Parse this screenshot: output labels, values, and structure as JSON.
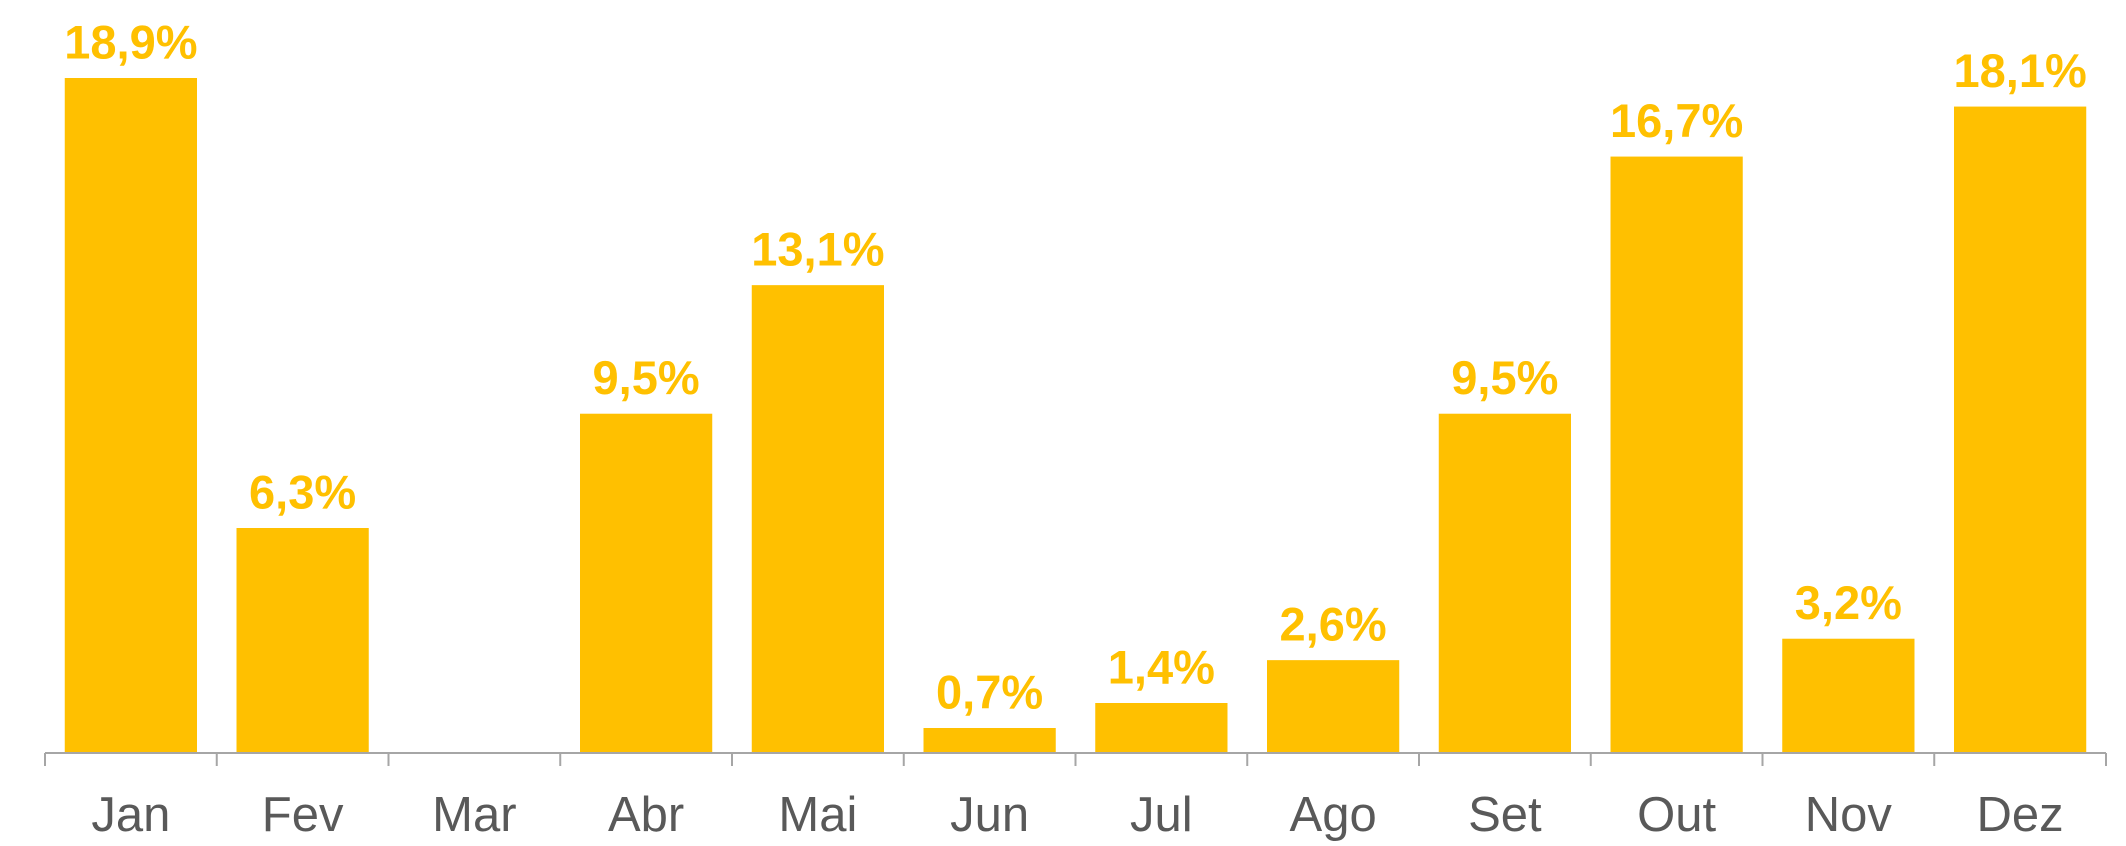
{
  "chart_data": {
    "type": "bar",
    "categories": [
      "Jan",
      "Fev",
      "Mar",
      "Abr",
      "Mai",
      "Jun",
      "Jul",
      "Ago",
      "Set",
      "Out",
      "Nov",
      "Dez"
    ],
    "values": [
      18.9,
      6.3,
      null,
      9.5,
      13.1,
      0.7,
      1.4,
      2.6,
      9.5,
      16.7,
      3.2,
      18.1
    ],
    "value_labels": [
      "18,9%",
      "6,3%",
      null,
      "9,5%",
      "13,1%",
      "0,7%",
      "1,4%",
      "2,6%",
      "9,5%",
      "16,7%",
      "3,2%",
      "18,1%"
    ],
    "color": "#FFC000"
  }
}
